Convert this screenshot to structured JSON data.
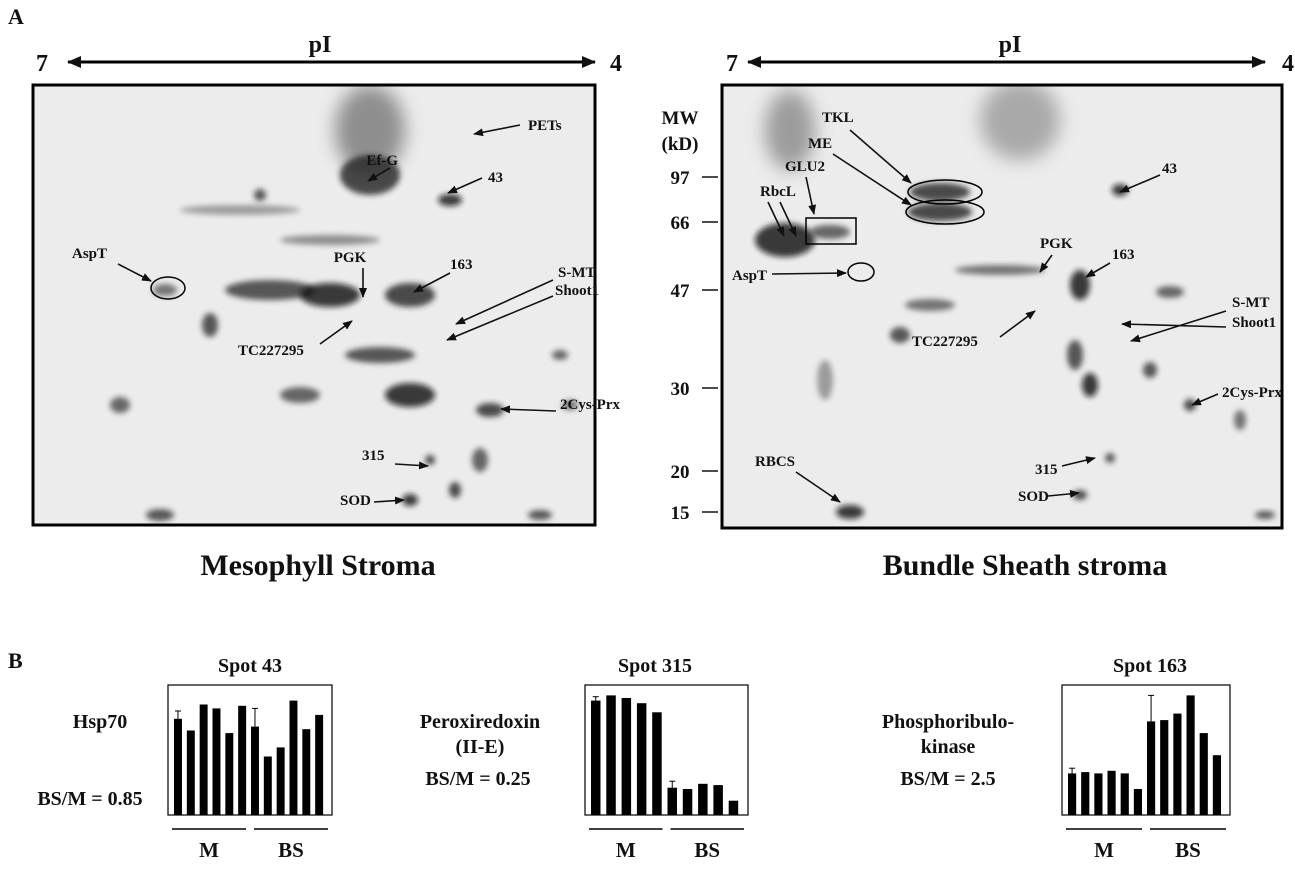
{
  "panel_a": {
    "letter": "A",
    "mw_axis": {
      "title": "MW",
      "unit": "(kD)",
      "ticks": [
        "97",
        "66",
        "47",
        "30",
        "20",
        "15"
      ]
    },
    "gels": [
      {
        "title": "Mesophyll Stroma",
        "pi_axis": {
          "left": "7",
          "label": "pI",
          "right": "4"
        },
        "annotations": [
          "PETs",
          "Ef-G",
          "43",
          "AspT",
          "PGK",
          "163",
          "S-MT",
          "Shoot1",
          "TC227295",
          "2Cys-Prx",
          "315",
          "SOD"
        ]
      },
      {
        "title": "Bundle Sheath stroma",
        "pi_axis": {
          "left": "7",
          "label": "pI",
          "right": "4"
        },
        "annotations": [
          "TKL",
          "ME",
          "GLU2",
          "RbcL",
          "AspT",
          "43",
          "PGK",
          "163",
          "S-MT",
          "Shoot1",
          "TC227295",
          "2Cys-Prx",
          "RBCS",
          "315",
          "SOD"
        ]
      }
    ]
  },
  "panel_b": {
    "letter": "B",
    "charts": [
      {
        "title": "Spot 43",
        "protein": [
          "Hsp70"
        ],
        "ratio": "BS/M = 0.85",
        "groups": [
          "M",
          "BS"
        ],
        "ylim": [
          0,
          100
        ],
        "values": [
          74,
          65,
          85,
          82,
          63,
          84,
          68,
          45,
          52,
          88,
          66,
          77
        ],
        "errors": [
          6,
          null,
          null,
          null,
          null,
          null,
          14,
          null,
          null,
          null,
          null,
          null
        ]
      },
      {
        "title": "Spot 315",
        "protein": [
          "Peroxiredoxin",
          "(II-E)"
        ],
        "ratio": "BS/M = 0.25",
        "groups": [
          "M",
          "BS"
        ],
        "ylim": [
          0,
          100
        ],
        "values": [
          88,
          92,
          90,
          86,
          79,
          21,
          20,
          24,
          23,
          11
        ],
        "errors": [
          3,
          null,
          null,
          null,
          null,
          5,
          null,
          null,
          null,
          null
        ]
      },
      {
        "title": "Spot 163",
        "protein": [
          "Phosphoribulo-",
          "kinase"
        ],
        "ratio": "BS/M = 2.5",
        "groups": [
          "M",
          "BS"
        ],
        "ylim": [
          0,
          100
        ],
        "values": [
          32,
          33,
          32,
          34,
          32,
          20,
          72,
          73,
          78,
          92,
          63,
          46
        ],
        "errors": [
          4,
          null,
          null,
          null,
          null,
          null,
          20,
          null,
          null,
          null,
          null,
          null
        ]
      }
    ]
  }
}
